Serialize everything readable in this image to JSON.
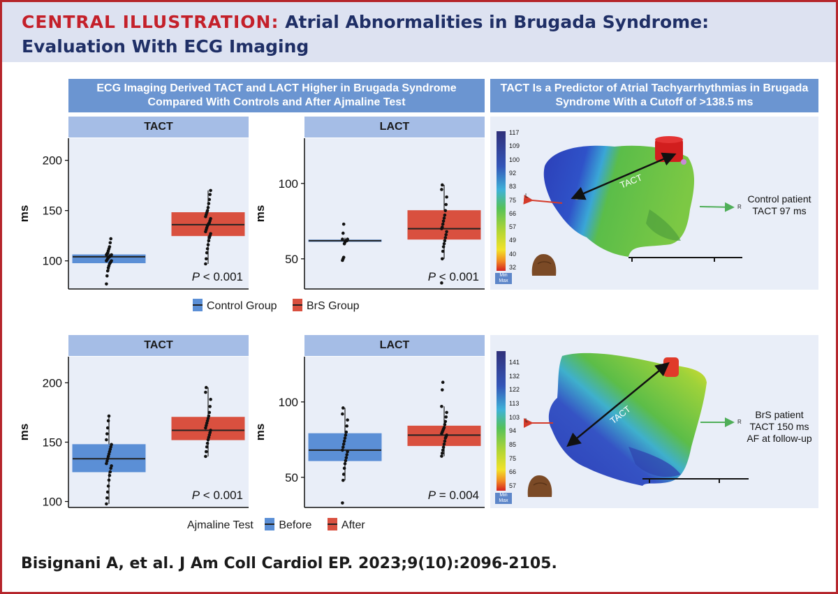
{
  "header": {
    "label": "CENTRAL ILLUSTRATION:",
    "title_line1": "Atrial Abnormalities in Brugada Syndrome:",
    "title_line2": "Evaluation With ECG Imaging"
  },
  "left_panel_title": "ECG Imaging Derived TACT and LACT Higher in Brugada Syndrome Compared With Controls and After Ajmaline Test",
  "right_panel_title": "TACT Is a Predictor of Atrial Tachyarrhythmias in Brugada Syndrome With a Cutoff of >138.5 ms",
  "legend_top": {
    "items": [
      {
        "label": "Control Group",
        "color": "#5b8fd6"
      },
      {
        "label": "BrS Group",
        "color": "#d9503f"
      }
    ]
  },
  "legend_bottom": {
    "title": "Ajmaline Test",
    "items": [
      {
        "label": "Before",
        "color": "#5b8fd6"
      },
      {
        "label": "After",
        "color": "#d9503f"
      }
    ]
  },
  "chart_data": [
    {
      "type": "box",
      "title": "TACT",
      "ylabel": "ms",
      "ylim": [
        72,
        222
      ],
      "yticks": [
        100,
        150,
        200
      ],
      "p_value": "P < 0.001",
      "boxes": [
        {
          "group": "Control Group",
          "color": "#5b8fd6",
          "q1": 98,
          "median": 104,
          "q3": 106,
          "whisker_low": 90,
          "whisker_high": 114,
          "points": [
            77,
            85,
            90,
            93,
            95,
            97,
            98,
            99,
            100,
            100,
            101,
            102,
            103,
            104,
            104,
            105,
            105,
            106,
            106,
            107,
            108,
            110,
            112,
            114,
            118,
            122
          ]
        },
        {
          "group": "BrS Group",
          "color": "#d9503f",
          "q1": 125,
          "median": 136,
          "q3": 148,
          "whisker_low": 97,
          "whisker_high": 170,
          "points": [
            97,
            102,
            108,
            112,
            116,
            120,
            123,
            125,
            127,
            129,
            131,
            133,
            135,
            136,
            137,
            138,
            140,
            142,
            144,
            146,
            148,
            150,
            153,
            157,
            161,
            166,
            170
          ]
        }
      ]
    },
    {
      "type": "box",
      "title": "LACT",
      "ylabel": "ms",
      "ylim": [
        30,
        130
      ],
      "yticks": [
        50,
        100
      ],
      "p_value": "P < 0.001",
      "boxes": [
        {
          "group": "Control Group",
          "color": "#5b8fd6",
          "q1": 61.5,
          "median": 62,
          "q3": 62.5,
          "whisker_low": 60,
          "whisker_high": 64,
          "points": [
            49,
            50,
            51,
            60,
            61,
            62,
            62,
            62,
            63,
            63,
            67,
            73
          ]
        },
        {
          "group": "BrS Group",
          "color": "#d9503f",
          "q1": 63,
          "median": 70,
          "q3": 82,
          "whisker_low": 50,
          "whisker_high": 99,
          "points": [
            34,
            50,
            55,
            58,
            60,
            62,
            64,
            66,
            68,
            70,
            71,
            73,
            75,
            77,
            79,
            82,
            86,
            91,
            96,
            99
          ]
        }
      ]
    },
    {
      "type": "box",
      "title": "TACT",
      "ylabel": "ms",
      "ylim": [
        95,
        222
      ],
      "yticks": [
        100,
        150,
        200
      ],
      "p_value": "P < 0.001",
      "boxes": [
        {
          "group": "Before",
          "color": "#5b8fd6",
          "q1": 125,
          "median": 136,
          "q3": 148,
          "whisker_low": 98,
          "whisker_high": 172,
          "points": [
            98,
            103,
            108,
            113,
            118,
            122,
            125,
            128,
            130,
            132,
            134,
            136,
            138,
            140,
            142,
            144,
            146,
            148,
            152,
            157,
            162,
            168,
            172
          ]
        },
        {
          "group": "After",
          "color": "#d9503f",
          "q1": 152,
          "median": 160,
          "q3": 171,
          "whisker_low": 138,
          "whisker_high": 196,
          "points": [
            138,
            142,
            146,
            149,
            152,
            154,
            156,
            158,
            160,
            162,
            164,
            166,
            168,
            170,
            172,
            175,
            180,
            186,
            192,
            196
          ]
        }
      ]
    },
    {
      "type": "box",
      "title": "LACT",
      "ylabel": "ms",
      "ylim": [
        30,
        130
      ],
      "yticks": [
        50,
        100
      ],
      "p_value": "P = 0.004",
      "boxes": [
        {
          "group": "Before",
          "color": "#5b8fd6",
          "q1": 61,
          "median": 68,
          "q3": 79,
          "whisker_low": 48,
          "whisker_high": 96,
          "points": [
            33,
            48,
            52,
            56,
            59,
            61,
            63,
            65,
            67,
            68,
            70,
            72,
            74,
            76,
            78,
            80,
            84,
            88,
            92,
            96
          ]
        },
        {
          "group": "After",
          "color": "#d9503f",
          "q1": 71,
          "median": 78,
          "q3": 84,
          "whisker_low": 64,
          "whisker_high": 97,
          "points": [
            64,
            66,
            68,
            70,
            72,
            74,
            76,
            77,
            78,
            79,
            80,
            81,
            82,
            83,
            85,
            87,
            90,
            93,
            97,
            108,
            113
          ]
        }
      ]
    }
  ],
  "maps": [
    {
      "colorbar_ticks": [
        "117",
        "109",
        "100",
        "92",
        "83",
        "75",
        "66",
        "57",
        "49",
        "40",
        "32"
      ],
      "min_label": "Min",
      "max_label": "Max",
      "label_lines": [
        "Control patient",
        "TACT 97 ms"
      ],
      "arrow_label": "TACT",
      "left_marker": "L",
      "right_marker": "R"
    },
    {
      "colorbar_ticks": [
        "141",
        "132",
        "122",
        "113",
        "103",
        "94",
        "85",
        "75",
        "66",
        "57"
      ],
      "min_label": "Min",
      "max_label": "Max",
      "label_lines": [
        "BrS patient",
        "TACT 150 ms",
        "AF at follow-up"
      ],
      "arrow_label": "TACT",
      "left_marker": "L",
      "right_marker": "R"
    }
  ],
  "citation": "Bisignani A, et al. J Am Coll Cardiol EP. 2023;9(10):2096-2105."
}
